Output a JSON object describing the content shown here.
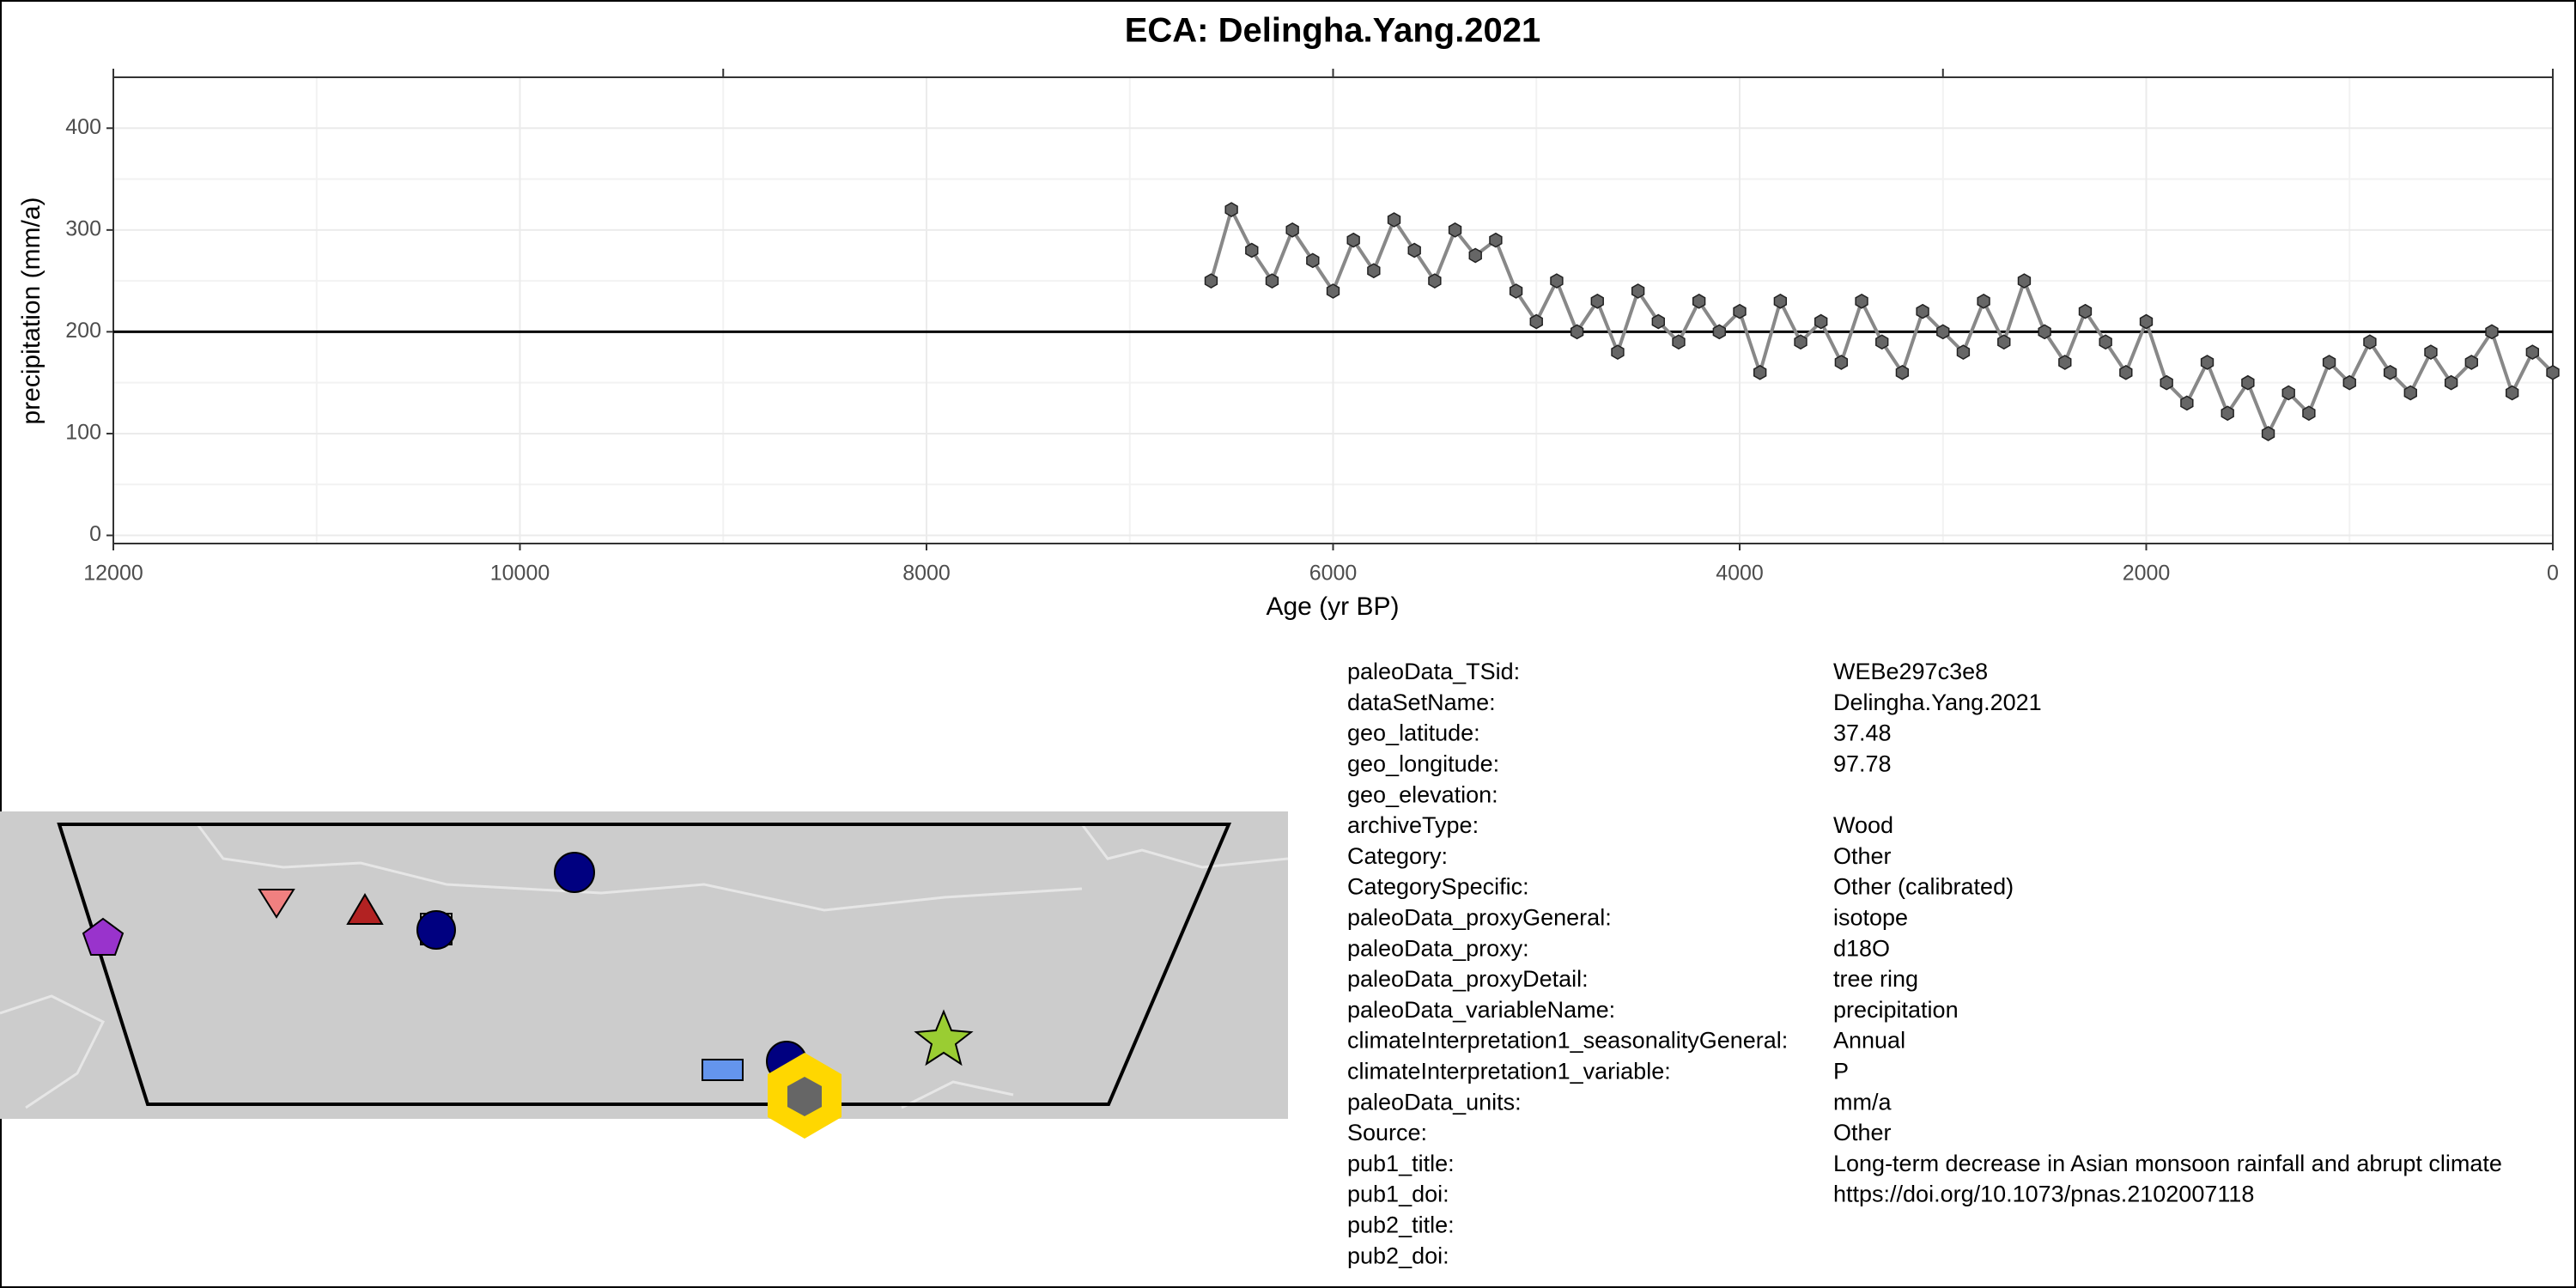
{
  "chart_data": {
    "type": "line",
    "title": "ECA: Delingha.Yang.2021",
    "xlabel": "Age (yr BP)",
    "ylabel": "precipitation (mm/a)",
    "x": [
      6600,
      6500,
      6400,
      6300,
      6200,
      6100,
      6000,
      5900,
      5800,
      5700,
      5600,
      5500,
      5400,
      5300,
      5200,
      5100,
      5000,
      4900,
      4800,
      4700,
      4600,
      4500,
      4400,
      4300,
      4200,
      4100,
      4000,
      3900,
      3800,
      3700,
      3600,
      3500,
      3400,
      3300,
      3200,
      3100,
      3000,
      2900,
      2800,
      2700,
      2600,
      2500,
      2400,
      2300,
      2200,
      2100,
      2000,
      1900,
      1800,
      1700,
      1600,
      1500,
      1400,
      1300,
      1200,
      1100,
      1000,
      900,
      800,
      700,
      600,
      500,
      400,
      300,
      200,
      100,
      0
    ],
    "series": [
      {
        "name": "precipitation",
        "color": "#666666",
        "values": [
          250,
          320,
          280,
          250,
          300,
          270,
          240,
          290,
          260,
          310,
          280,
          250,
          300,
          275,
          290,
          240,
          210,
          250,
          200,
          230,
          180,
          240,
          210,
          190,
          230,
          200,
          220,
          160,
          230,
          190,
          210,
          170,
          230,
          190,
          160,
          220,
          200,
          180,
          230,
          190,
          250,
          200,
          170,
          220,
          190,
          160,
          210,
          150,
          130,
          170,
          120,
          150,
          100,
          140,
          120,
          170,
          150,
          190,
          160,
          140,
          180,
          150,
          170,
          200,
          140,
          180,
          160
        ]
      }
    ],
    "xlim": [
      12000,
      0
    ],
    "xticks": [
      12000,
      10000,
      8000,
      6000,
      4000,
      2000,
      0
    ],
    "x2ticks": [
      12000,
      9000,
      6000,
      3000,
      0
    ],
    "ylim": [
      -8,
      450
    ],
    "yticks": [
      0,
      100,
      200,
      300,
      400
    ],
    "reference_line": 200,
    "grid": true
  },
  "metadata": [
    [
      "paleoData_TSid:",
      "WEBe297c3e8"
    ],
    [
      "dataSetName:",
      "Delingha.Yang.2021"
    ],
    [
      "geo_latitude:",
      "37.48"
    ],
    [
      "geo_longitude:",
      "97.78"
    ],
    [
      "geo_elevation:"
    ],
    [
      "archiveType:",
      "Wood"
    ],
    [
      "Category:",
      "Other"
    ],
    [
      "CategorySpecific:",
      "Other (calibrated)"
    ],
    [
      "paleoData_proxyGeneral:",
      "isotope"
    ],
    [
      "paleoData_proxy:",
      "d18O"
    ],
    [
      "paleoData_proxyDetail:",
      "tree ring"
    ],
    [
      "paleoData_variableName:",
      "precipitation"
    ],
    [
      "climateInterpretation1_seasonalityGeneral:",
      "Annual"
    ],
    [
      "climateInterpretation1_variable:",
      "P"
    ],
    [
      "paleoData_units:",
      "mm/a"
    ],
    [
      "Source:",
      "Other"
    ],
    [
      "pub1_title:",
      "Long-term decrease in Asian monsoon rainfall and abrupt climate"
    ],
    [
      "pub1_doi:",
      "https://doi.org/10.1073/pnas.2102007118"
    ],
    [
      "pub2_title:"
    ],
    [
      "pub2_doi:"
    ]
  ]
}
